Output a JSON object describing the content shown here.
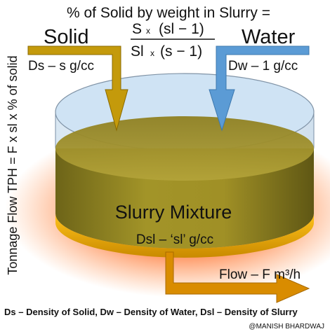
{
  "header": {
    "title": "% of Solid by weight  in Slurry =",
    "numerator": {
      "a": "S",
      "op": "x",
      "b": "(sl − 1)"
    },
    "denominator": {
      "a": "Sl",
      "op": "x",
      "b": "(s − 1)"
    }
  },
  "side_label": "Tonnage Flow TPH = F x sl x % of solid",
  "solid": {
    "label": "Solid",
    "density": "Ds – s g/cc",
    "color": "#c49a0b"
  },
  "water": {
    "label": "Water",
    "density": "Dw – 1 g/cc",
    "color": "#5b9bd5"
  },
  "tank": {
    "title": "Slurry Mixture",
    "density": "Dsl – ‘sl’ g/cc"
  },
  "flow_label": "Flow – F m³/h",
  "footer": "Ds – Density of Solid, Dw – Density of Water, Dsl – Density of Slurry",
  "credit": "@MANISH BHARDWAJ"
}
